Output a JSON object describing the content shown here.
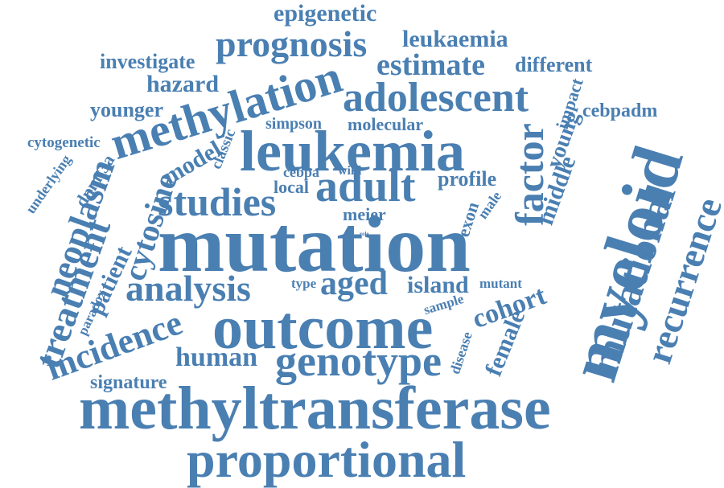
{
  "words": [
    "epigenetic",
    "prognosis",
    "leukaemia",
    "investigate",
    "estimate",
    "different",
    "hazard",
    "methylation",
    "adolescent",
    "impact",
    "younger",
    "cebpadm",
    "simpson",
    "molecular",
    "cytogenetic",
    "leukemia",
    "classic",
    "young",
    "underlying",
    "dnmt3a",
    "model",
    "factor",
    "cebpa",
    "wild",
    "profile",
    "neoplasm",
    "cytosine",
    "studies",
    "local",
    "adult",
    "exon",
    "middle",
    "male",
    "meier",
    "mutation",
    "role",
    "myeloid",
    "treatment",
    "patient",
    "analysis",
    "aged",
    "island",
    "mutant",
    "type",
    "paradox",
    "sample",
    "cohort",
    "mutational",
    "recurrence",
    "incidence",
    "outcome",
    "female",
    "human",
    "genotype",
    "disease",
    "signature",
    "methyltransferase",
    "proportional"
  ],
  "colors": {
    "word": "#4a7fb2",
    "background": "#ffffff"
  }
}
